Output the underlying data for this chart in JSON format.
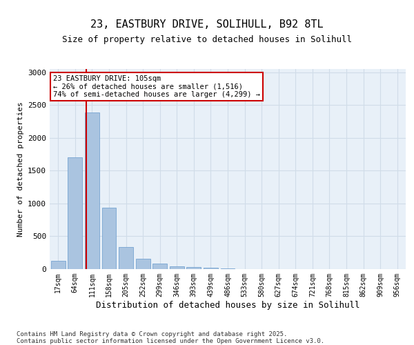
{
  "title1": "23, EASTBURY DRIVE, SOLIHULL, B92 8TL",
  "title2": "Size of property relative to detached houses in Solihull",
  "xlabel": "Distribution of detached houses by size in Solihull",
  "ylabel": "Number of detached properties",
  "categories": [
    "17sqm",
    "64sqm",
    "111sqm",
    "158sqm",
    "205sqm",
    "252sqm",
    "299sqm",
    "346sqm",
    "393sqm",
    "439sqm",
    "486sqm",
    "533sqm",
    "580sqm",
    "627sqm",
    "674sqm",
    "721sqm",
    "768sqm",
    "815sqm",
    "862sqm",
    "909sqm",
    "956sqm"
  ],
  "values": [
    130,
    1700,
    2390,
    940,
    340,
    155,
    85,
    45,
    35,
    20,
    15,
    5,
    2,
    0,
    0,
    0,
    0,
    0,
    0,
    0,
    0
  ],
  "bar_color": "#aac4e0",
  "bar_edge_color": "#6699cc",
  "grid_color": "#d0dce8",
  "bg_color": "#e8f0f8",
  "vline_x": 2,
  "vline_color": "#cc0000",
  "annotation_text": "23 EASTBURY DRIVE: 105sqm\n← 26% of detached houses are smaller (1,516)\n74% of semi-detached houses are larger (4,299) →",
  "annotation_box_color": "#cc0000",
  "footer": "Contains HM Land Registry data © Crown copyright and database right 2025.\nContains public sector information licensed under the Open Government Licence v3.0.",
  "ylim": [
    0,
    3050
  ],
  "yticks": [
    0,
    500,
    1000,
    1500,
    2000,
    2500,
    3000
  ]
}
